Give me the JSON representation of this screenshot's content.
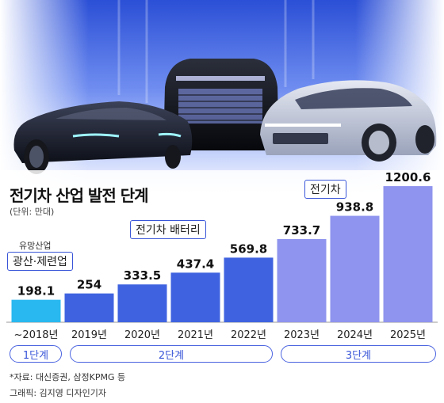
{
  "header": {
    "title": "전기차 산업 발전 단계",
    "unit": "(단위: 만대)"
  },
  "hero_image": {
    "description_icon": "electric-car-lineup-image"
  },
  "chart_data": {
    "type": "bar",
    "title": "전기차 산업 발전 단계",
    "unit": "(단위: 만대)",
    "categories": [
      "~2018년",
      "2019년",
      "2020년",
      "2021년",
      "2022년",
      "2023년",
      "2024년",
      "2025년"
    ],
    "values": [
      198.1,
      254,
      333.5,
      437.4,
      569.8,
      733.7,
      938.8,
      1200.6
    ],
    "value_labels": [
      "198.1",
      "254",
      "333.5",
      "437.4",
      "569.8",
      "733.7",
      "938.8",
      "1200.6"
    ],
    "ylim": [
      0,
      1250
    ],
    "grid": false,
    "colors": {
      "stage1": "#29b8f0",
      "stage2": "#3f63e0",
      "stage3": "#8f94ee"
    },
    "stage_of_bar": [
      1,
      2,
      2,
      2,
      2,
      3,
      3,
      3
    ]
  },
  "annotations": {
    "stage1_top": "유망산업",
    "stage1_box": "광산·제련업",
    "stage2_box": "전기차 배터리",
    "stage3_box": "전기차"
  },
  "stages": {
    "s1": "1단계",
    "s2": "2단계",
    "s3": "3단계"
  },
  "footer": {
    "source": "*자료: 대신증권, 삼정KPMG 등",
    "credit": "그래픽: 김지영 디자인기자"
  }
}
